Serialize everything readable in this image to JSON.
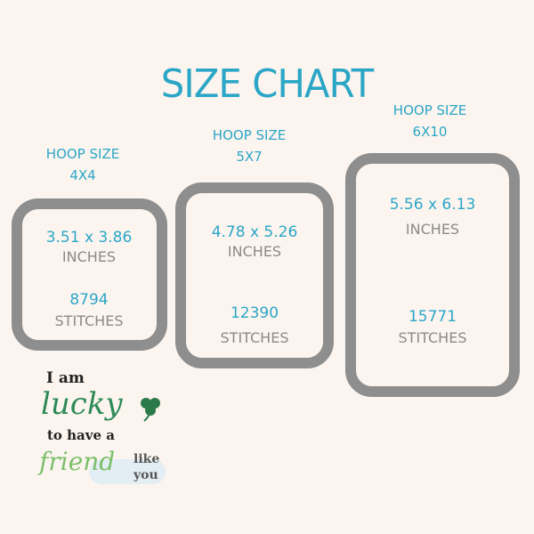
{
  "title": "SIZE CHART",
  "hoops": [
    {
      "label": "HOOP SIZE",
      "size": "4X4",
      "dimensions": "3.51 x 3.86",
      "dim_unit": "INCHES",
      "stitches": "8794",
      "stitch_unit": "STITCHES"
    },
    {
      "label": "HOOP SIZE",
      "size": "5X7",
      "dimensions": "4.78 x 5.26",
      "dim_unit": "INCHES",
      "stitches": "12390",
      "stitch_unit": "STITCHES"
    },
    {
      "label": "HOOP SIZE",
      "size": "6X10",
      "dimensions": "5.56 x 6.13",
      "dim_unit": "INCHES",
      "stitches": "15771",
      "stitch_unit": "STITCHES"
    }
  ],
  "design": {
    "line1": "I am",
    "line2": "lucky",
    "line3": "to have a",
    "line4": "friend",
    "line5": "like",
    "line6": "you",
    "icon": "shamrock-icon"
  },
  "colors": {
    "accent": "#2ba6c7",
    "frame": "#8e8e8e",
    "background": "#fcf5ef"
  }
}
